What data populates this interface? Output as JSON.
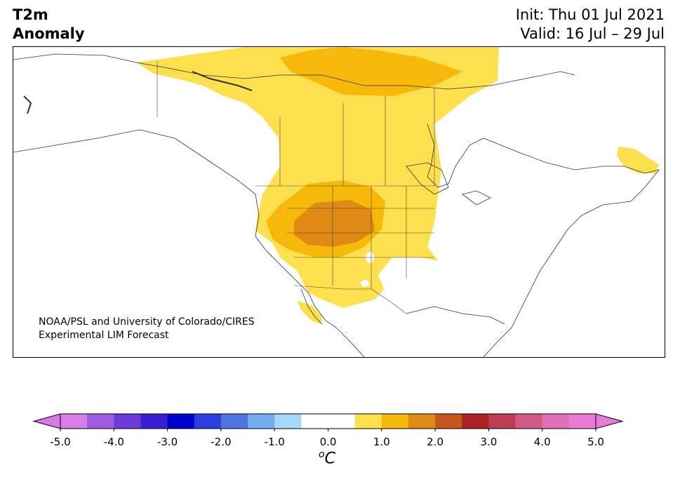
{
  "title": {
    "variable": "T2m",
    "subtitle": "Anomaly",
    "init": "Init: Thu 01 Jul 2021",
    "valid": "Valid: 16 Jul – 29 Jul"
  },
  "credit": {
    "line1": "NOAA/PSL and University of Colorado/CIRES",
    "line2": "Experimental LIM Forecast"
  },
  "map": {
    "region": "North America",
    "anomaly_features": [
      {
        "area": "Northwest Territories / Nunavut",
        "level": "0.5 to 1.0"
      },
      {
        "area": "Central Canadian Arctic",
        "level": "1.0 to 1.5"
      },
      {
        "area": "Saskatchewan / Manitoba / Hudson Bay",
        "level": "0.5 to 1.0"
      },
      {
        "area": "US Northern Rockies / Great Basin / Plains",
        "level": "0.5 to 1.5"
      },
      {
        "area": "Idaho / Utah / Wyoming / Colorado",
        "level": "1.5 to 2.0"
      },
      {
        "area": "Southwest US / northwest Mexico",
        "level": "0.5 to 1.0"
      },
      {
        "area": "Labrador",
        "level": "0.5 to 1.0"
      }
    ]
  },
  "colorbar": {
    "unit_base": "C",
    "unit_sup": "o",
    "ticks": [
      "-5.0",
      "-4.0",
      "-3.0",
      "-2.0",
      "-1.0",
      "0.0",
      "1.0",
      "2.0",
      "3.0",
      "4.0",
      "5.0"
    ],
    "tick_values": [
      -5,
      -4,
      -3,
      -2,
      -1,
      0,
      1,
      2,
      3,
      4,
      5
    ],
    "range": [
      -5.0,
      5.0
    ],
    "level_step": 0.5,
    "colors": [
      "#d87ee8",
      "#9d5ce0",
      "#6a3bd6",
      "#3a1fd2",
      "#0000cd",
      "#2a3fdc",
      "#4f74e2",
      "#72aeef",
      "#a6d8fb",
      "#ffffff",
      "#ffffff",
      "#fedf4d",
      "#f6b90a",
      "#e08a16",
      "#c8561c",
      "#aa2323",
      "#bf3c55",
      "#d15a86",
      "#df6fb6",
      "#e97bd6"
    ],
    "under_color": "#d878e6",
    "over_color": "#e97bd6"
  }
}
